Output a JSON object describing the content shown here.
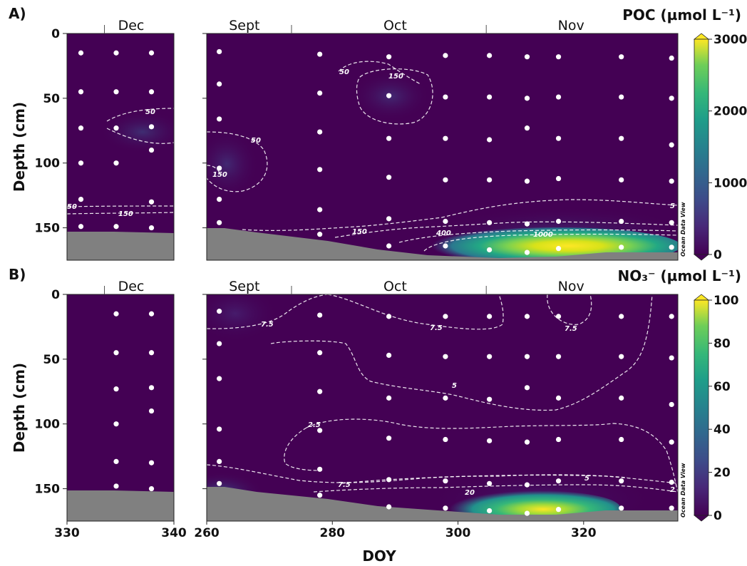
{
  "figure": {
    "xlabel": "DOY",
    "ylabel": "Depth (cm)",
    "watermark": "Ocean Data View"
  },
  "chart_data": [
    {
      "panel": "A)",
      "type": "heatmap",
      "variable": "POC",
      "colorbar_label": "POC (µmol L⁻¹)",
      "colorbar_range": [
        0,
        3000
      ],
      "colorbar_ticks": [
        0,
        1000,
        2000,
        3000
      ],
      "colormap": [
        "#440154",
        "#3b528b",
        "#21918c",
        "#5ec962",
        "#fde725"
      ],
      "ylim": [
        0,
        175
      ],
      "yticks": [
        0,
        50,
        100,
        150
      ],
      "subplots": [
        {
          "xlim": [
            330,
            340
          ],
          "xticks": [
            330,
            340
          ],
          "months": [
            {
              "label": "Dec",
              "x": 336
            }
          ],
          "points": [
            [
              331.3,
              15
            ],
            [
              331.3,
              45
            ],
            [
              331.3,
              73
            ],
            [
              331.3,
              100
            ],
            [
              331.3,
              128
            ],
            [
              331.3,
              149
            ],
            [
              334.6,
              15
            ],
            [
              334.6,
              45
            ],
            [
              334.6,
              73
            ],
            [
              334.6,
              100
            ],
            [
              334.6,
              149
            ],
            [
              337.9,
              15
            ],
            [
              337.9,
              45
            ],
            [
              337.9,
              72
            ],
            [
              337.9,
              90
            ],
            [
              337.9,
              130
            ],
            [
              337.9,
              150
            ]
          ],
          "contours": [
            {
              "label": "50",
              "value": 50
            },
            {
              "label": "50",
              "value": 50
            },
            {
              "label": "150",
              "value": 150
            }
          ]
        },
        {
          "xlim": [
            260,
            335
          ],
          "xticks": [
            260,
            280,
            300,
            320
          ],
          "months": [
            {
              "label": "Sept",
              "x": 266
            },
            {
              "label": "Oct",
              "x": 290
            },
            {
              "label": "Nov",
              "x": 318
            }
          ],
          "points": [
            [
              262,
              14
            ],
            [
              262,
              39
            ],
            [
              262,
              66
            ],
            [
              262,
              104
            ],
            [
              262,
              128
            ],
            [
              262,
              146
            ],
            [
              278,
              16
            ],
            [
              278,
              46
            ],
            [
              278,
              76
            ],
            [
              278,
              105
            ],
            [
              278,
              136
            ],
            [
              278,
              155
            ],
            [
              289,
              18
            ],
            [
              289,
              48
            ],
            [
              289,
              81
            ],
            [
              289,
              111
            ],
            [
              289,
              143
            ],
            [
              289,
              164
            ],
            [
              298,
              17
            ],
            [
              298,
              49
            ],
            [
              298,
              81
            ],
            [
              298,
              113
            ],
            [
              298,
              145
            ],
            [
              298,
              164
            ],
            [
              305,
              17
            ],
            [
              305,
              49
            ],
            [
              305,
              82
            ],
            [
              305,
              113
            ],
            [
              305,
              146
            ],
            [
              305,
              167
            ],
            [
              311,
              18
            ],
            [
              311,
              50
            ],
            [
              311,
              73
            ],
            [
              311,
              114
            ],
            [
              311,
              147
            ],
            [
              311,
              169
            ],
            [
              316,
              18
            ],
            [
              316,
              49
            ],
            [
              316,
              81
            ],
            [
              316,
              112
            ],
            [
              316,
              145
            ],
            [
              316,
              166
            ],
            [
              326,
              18
            ],
            [
              326,
              49
            ],
            [
              326,
              81
            ],
            [
              326,
              113
            ],
            [
              326,
              145
            ],
            [
              326,
              165
            ],
            [
              334,
              19
            ],
            [
              334,
              50
            ],
            [
              334,
              86
            ],
            [
              334,
              114
            ],
            [
              334,
              146
            ],
            [
              334,
              165
            ]
          ],
          "contours": [
            {
              "label": "50",
              "value": 50
            },
            {
              "label": "150",
              "value": 150
            },
            {
              "label": "50",
              "value": 50
            },
            {
              "label": "150",
              "value": 150
            },
            {
              "label": "150",
              "value": 150
            },
            {
              "label": "400",
              "value": 400
            },
            {
              "label": "1000",
              "value": 1000
            },
            {
              "label": "5",
              "value": 5
            }
          ]
        }
      ]
    },
    {
      "panel": "B)",
      "type": "heatmap",
      "variable": "NO3-",
      "colorbar_label": "NO₃⁻ (µmol L⁻¹)",
      "colorbar_range": [
        0,
        100
      ],
      "colorbar_ticks": [
        0,
        20,
        40,
        60,
        80,
        100
      ],
      "colormap": [
        "#440154",
        "#3b528b",
        "#21918c",
        "#5ec962",
        "#fde725"
      ],
      "ylim": [
        0,
        175
      ],
      "yticks": [
        0,
        50,
        100,
        150
      ],
      "subplots": [
        {
          "xlim": [
            330,
            340
          ],
          "xticks": [
            330,
            340
          ],
          "months": [
            {
              "label": "Dec",
              "x": 336
            }
          ],
          "points": [
            [
              334.6,
              15
            ],
            [
              334.6,
              45
            ],
            [
              334.6,
              73
            ],
            [
              334.6,
              100
            ],
            [
              334.6,
              129
            ],
            [
              334.6,
              148
            ],
            [
              337.9,
              15
            ],
            [
              337.9,
              45
            ],
            [
              337.9,
              72
            ],
            [
              337.9,
              90
            ],
            [
              337.9,
              130
            ],
            [
              337.9,
              150
            ]
          ],
          "contours": []
        },
        {
          "xlim": [
            260,
            335
          ],
          "xticks": [
            260,
            280,
            300,
            320
          ],
          "months": [
            {
              "label": "Sept",
              "x": 266
            },
            {
              "label": "Oct",
              "x": 290
            },
            {
              "label": "Nov",
              "x": 318
            }
          ],
          "points": [
            [
              262,
              13
            ],
            [
              262,
              38
            ],
            [
              262,
              65
            ],
            [
              262,
              104
            ],
            [
              262,
              129
            ],
            [
              262,
              146
            ],
            [
              278,
              16
            ],
            [
              278,
              45
            ],
            [
              278,
              75
            ],
            [
              278,
              105
            ],
            [
              278,
              135
            ],
            [
              278,
              155
            ],
            [
              289,
              17
            ],
            [
              289,
              47
            ],
            [
              289,
              80
            ],
            [
              289,
              111
            ],
            [
              289,
              143
            ],
            [
              289,
              164
            ],
            [
              298,
              17
            ],
            [
              298,
              48
            ],
            [
              298,
              80
            ],
            [
              298,
              112
            ],
            [
              298,
              144
            ],
            [
              298,
              165
            ],
            [
              305,
              17
            ],
            [
              305,
              48
            ],
            [
              305,
              81
            ],
            [
              305,
              113
            ],
            [
              305,
              146
            ],
            [
              305,
              167
            ],
            [
              311,
              17
            ],
            [
              311,
              48
            ],
            [
              311,
              72
            ],
            [
              311,
              114
            ],
            [
              311,
              147
            ],
            [
              311,
              169
            ],
            [
              316,
              17
            ],
            [
              316,
              48
            ],
            [
              316,
              80
            ],
            [
              316,
              112
            ],
            [
              316,
              144
            ],
            [
              316,
              166
            ],
            [
              326,
              17
            ],
            [
              326,
              48
            ],
            [
              326,
              80
            ],
            [
              326,
              112
            ],
            [
              326,
              144
            ],
            [
              326,
              165
            ],
            [
              334,
              17
            ],
            [
              334,
              49
            ],
            [
              334,
              85
            ],
            [
              334,
              114
            ],
            [
              334,
              145
            ],
            [
              334,
              165
            ]
          ],
          "contours": [
            {
              "label": "7.5",
              "value": 7.5
            },
            {
              "label": "7.5",
              "value": 7.5
            },
            {
              "label": "7.5",
              "value": 7.5
            },
            {
              "label": "5",
              "value": 5
            },
            {
              "label": "2.5",
              "value": 2.5
            },
            {
              "label": "7.5",
              "value": 7.5
            },
            {
              "label": "20",
              "value": 20
            },
            {
              "label": "5",
              "value": 5
            },
            {
              "label": "2",
              "value": 2
            }
          ]
        }
      ]
    }
  ]
}
